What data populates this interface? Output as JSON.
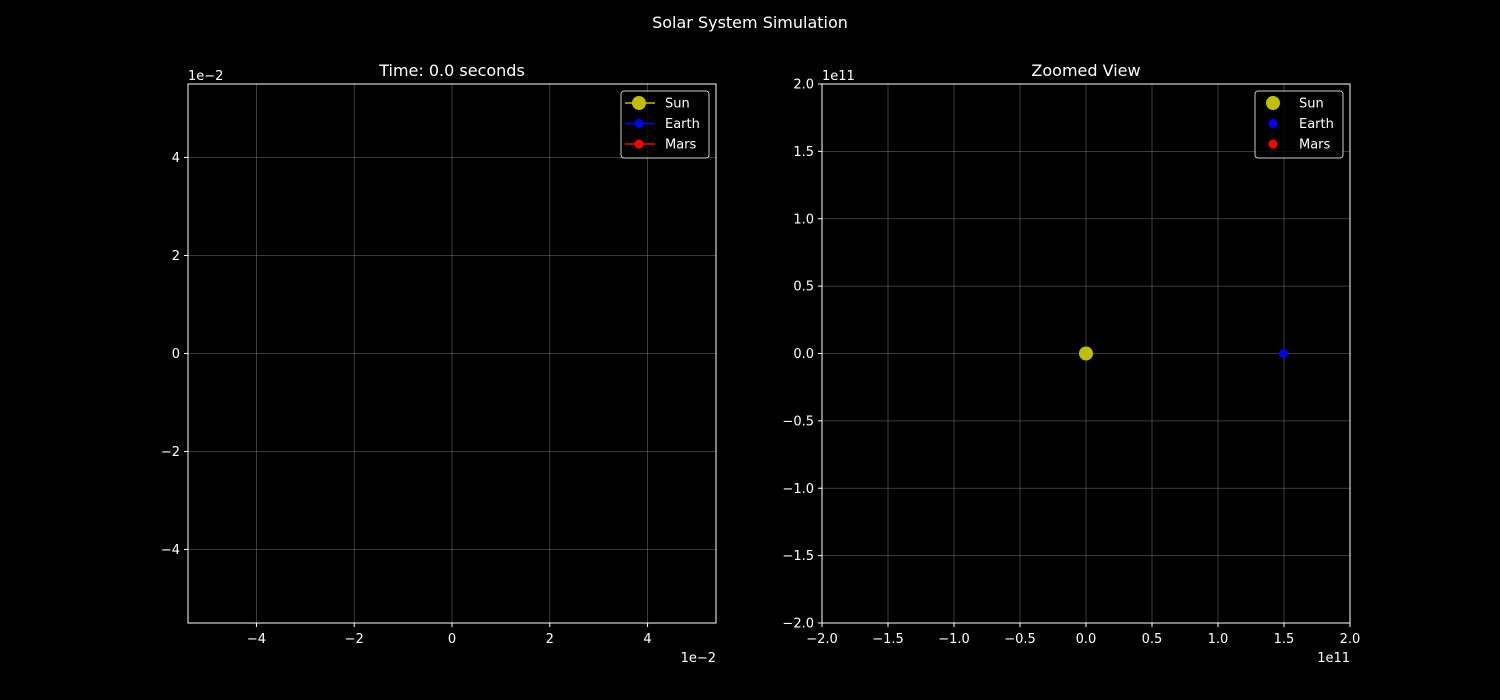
{
  "figure": {
    "suptitle": "Solar System Simulation",
    "background": "#000000",
    "text_color": "#ffffff",
    "grid_color": "#808080"
  },
  "chart_data": [
    {
      "type": "line",
      "title": "Time: 0.0 seconds",
      "xlim": [
        -0.054,
        0.054
      ],
      "ylim": [
        -0.055,
        0.055
      ],
      "x_ticks": [
        -0.04,
        -0.02,
        0,
        0.02,
        0.04
      ],
      "x_tick_labels": [
        "−4",
        "−2",
        "0",
        "2",
        "4"
      ],
      "y_ticks": [
        -0.04,
        -0.02,
        0,
        0.02,
        0.04
      ],
      "y_tick_labels": [
        "−4",
        "−2",
        "0",
        "2",
        "4"
      ],
      "x_offset_label": "1e−2",
      "y_offset_label": "1e−2",
      "grid": true,
      "legend_position": "top-right",
      "series": [
        {
          "name": "Sun",
          "color": "#bfbf00",
          "marker": "circle-large",
          "points": []
        },
        {
          "name": "Earth",
          "color": "#0000ff",
          "marker": "circle",
          "points": []
        },
        {
          "name": "Mars",
          "color": "#ff0000",
          "marker": "circle",
          "points": []
        }
      ]
    },
    {
      "type": "scatter",
      "title": "Zoomed View",
      "xlim": [
        -200000000000.0,
        200000000000.0
      ],
      "ylim": [
        -200000000000.0,
        200000000000.0
      ],
      "x_ticks": [
        -200000000000.0,
        -150000000000.0,
        -100000000000.0,
        -50000000000.0,
        0,
        50000000000.0,
        100000000000.0,
        150000000000.0,
        200000000000.0
      ],
      "x_tick_labels": [
        "−2.0",
        "−1.5",
        "−1.0",
        "−0.5",
        "0.0",
        "0.5",
        "1.0",
        "1.5",
        "2.0"
      ],
      "y_ticks": [
        -200000000000.0,
        -150000000000.0,
        -100000000000.0,
        -50000000000.0,
        0,
        50000000000.0,
        100000000000.0,
        150000000000.0,
        200000000000.0
      ],
      "y_tick_labels": [
        "−2.0",
        "−1.5",
        "−1.0",
        "−0.5",
        "0.0",
        "0.5",
        "1.0",
        "1.5",
        "2.0"
      ],
      "x_offset_label": "1e11",
      "y_offset_label": "1e11",
      "grid": true,
      "legend_position": "top-right",
      "series": [
        {
          "name": "Sun",
          "color": "#bfbf00",
          "marker": "circle-large",
          "points": [
            [
              0,
              0
            ]
          ]
        },
        {
          "name": "Earth",
          "color": "#0000ff",
          "marker": "circle",
          "points": [
            [
              149600000000.0,
              0
            ]
          ]
        },
        {
          "name": "Mars",
          "color": "#ff0000",
          "marker": "circle",
          "points": []
        }
      ]
    }
  ]
}
